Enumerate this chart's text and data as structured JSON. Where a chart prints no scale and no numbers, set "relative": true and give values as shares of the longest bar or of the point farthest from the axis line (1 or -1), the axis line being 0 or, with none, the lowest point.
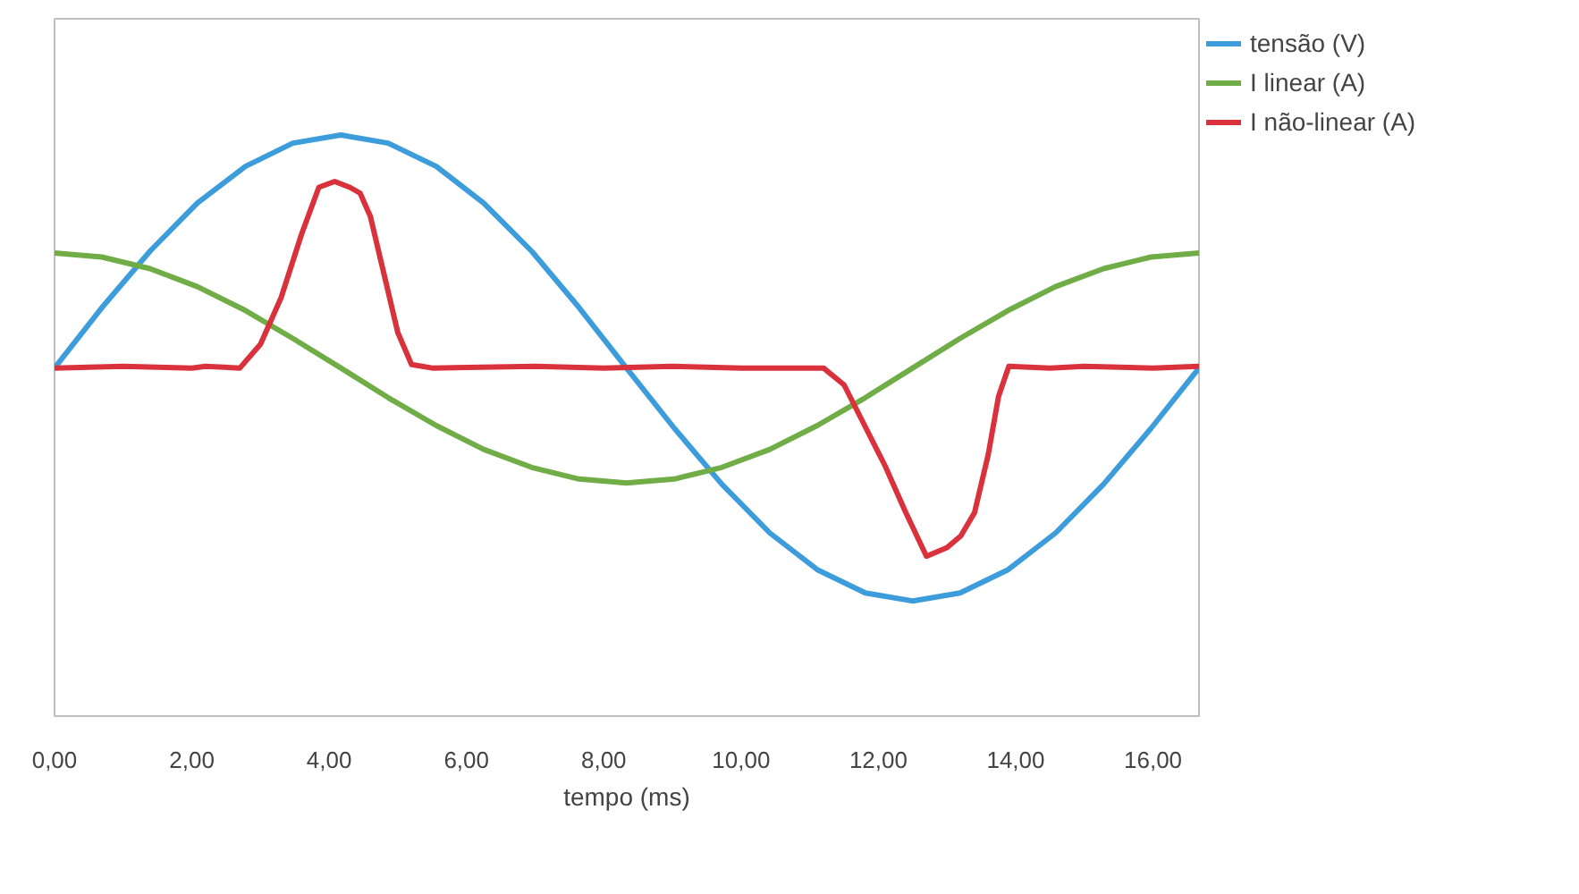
{
  "chart_data": {
    "type": "line",
    "relative": true,
    "xlabel": "tempo (ms)",
    "xlim": [
      0,
      16.67
    ],
    "xticks": [
      {
        "value": 0,
        "label": "0,00"
      },
      {
        "value": 2,
        "label": "2,00"
      },
      {
        "value": 4,
        "label": "4,00"
      },
      {
        "value": 6,
        "label": "6,00"
      },
      {
        "value": 8,
        "label": "8,00"
      },
      {
        "value": 10,
        "label": "10,00"
      },
      {
        "value": 12,
        "label": "12,00"
      },
      {
        "value": 14,
        "label": "14,00"
      },
      {
        "value": 16,
        "label": "16,00"
      }
    ],
    "grid": false,
    "legend": "top right",
    "marker": "none",
    "line_style": "solid",
    "series": [
      {
        "name": "tensão (V)",
        "color": "#3d9ddb",
        "x": [
          0,
          0.69,
          1.39,
          2.08,
          2.78,
          3.47,
          4.17,
          4.86,
          5.56,
          6.25,
          6.95,
          7.64,
          8.33,
          9.03,
          9.72,
          10.42,
          11.11,
          11.81,
          12.5,
          13.19,
          13.89,
          14.58,
          15.28,
          15.97,
          16.67
        ],
        "values": [
          0.599,
          0.703,
          0.8,
          0.883,
          0.946,
          0.986,
          1.0,
          0.986,
          0.946,
          0.883,
          0.8,
          0.703,
          0.599,
          0.495,
          0.399,
          0.315,
          0.252,
          0.212,
          0.198,
          0.212,
          0.252,
          0.315,
          0.399,
          0.495,
          0.599
        ]
      },
      {
        "name": "I linear (A)",
        "color": "#70ad47",
        "x": [
          0,
          0.69,
          1.39,
          2.08,
          2.78,
          3.47,
          4.17,
          4.86,
          5.56,
          6.25,
          6.95,
          7.64,
          8.33,
          9.03,
          9.72,
          10.42,
          11.11,
          11.81,
          12.5,
          13.19,
          13.89,
          14.58,
          15.28,
          15.97,
          16.67
        ],
        "values": [
          0.797,
          0.79,
          0.77,
          0.739,
          0.698,
          0.65,
          0.599,
          0.548,
          0.5,
          0.459,
          0.428,
          0.408,
          0.401,
          0.408,
          0.428,
          0.459,
          0.5,
          0.548,
          0.599,
          0.65,
          0.698,
          0.739,
          0.77,
          0.79,
          0.797
        ]
      },
      {
        "name": "I não-linear (A)",
        "color": "#d9323c",
        "x": [
          0,
          1.0,
          2.0,
          2.2,
          2.7,
          3.0,
          3.3,
          3.6,
          3.85,
          4.08,
          4.3,
          4.45,
          4.6,
          4.8,
          5.0,
          5.2,
          5.5,
          7.0,
          8.0,
          9.0,
          10.0,
          11.2,
          11.5,
          11.8,
          12.1,
          12.4,
          12.7,
          13.0,
          13.2,
          13.4,
          13.6,
          13.75,
          13.9,
          14.5,
          15.0,
          16.0,
          16.67
        ],
        "values": [
          0.599,
          0.602,
          0.599,
          0.602,
          0.599,
          0.64,
          0.72,
          0.83,
          0.91,
          0.92,
          0.91,
          0.9,
          0.86,
          0.76,
          0.66,
          0.605,
          0.599,
          0.602,
          0.599,
          0.602,
          0.599,
          0.599,
          0.57,
          0.5,
          0.43,
          0.35,
          0.275,
          0.29,
          0.31,
          0.35,
          0.45,
          0.55,
          0.602,
          0.599,
          0.602,
          0.599,
          0.602
        ]
      }
    ]
  }
}
